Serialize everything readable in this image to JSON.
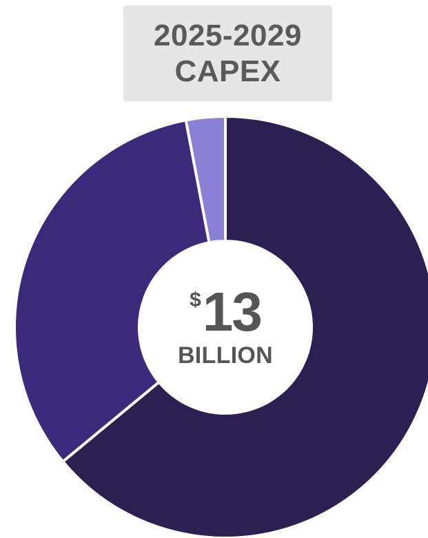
{
  "title": {
    "line1": "2025-2029",
    "line2": "CAPEX"
  },
  "center": {
    "currency": "$",
    "amount": "13",
    "unit": "BILLION"
  },
  "chart_data": {
    "type": "pie",
    "slices": [
      {
        "value": 64,
        "color": "#2c1f52"
      },
      {
        "value": 33,
        "color": "#3b2a7b"
      },
      {
        "value": 3,
        "color": "#8b7fd6"
      }
    ],
    "start": "12 o'clock",
    "direction": "clockwise",
    "donut": true,
    "separator_color": "#ffffff"
  }
}
